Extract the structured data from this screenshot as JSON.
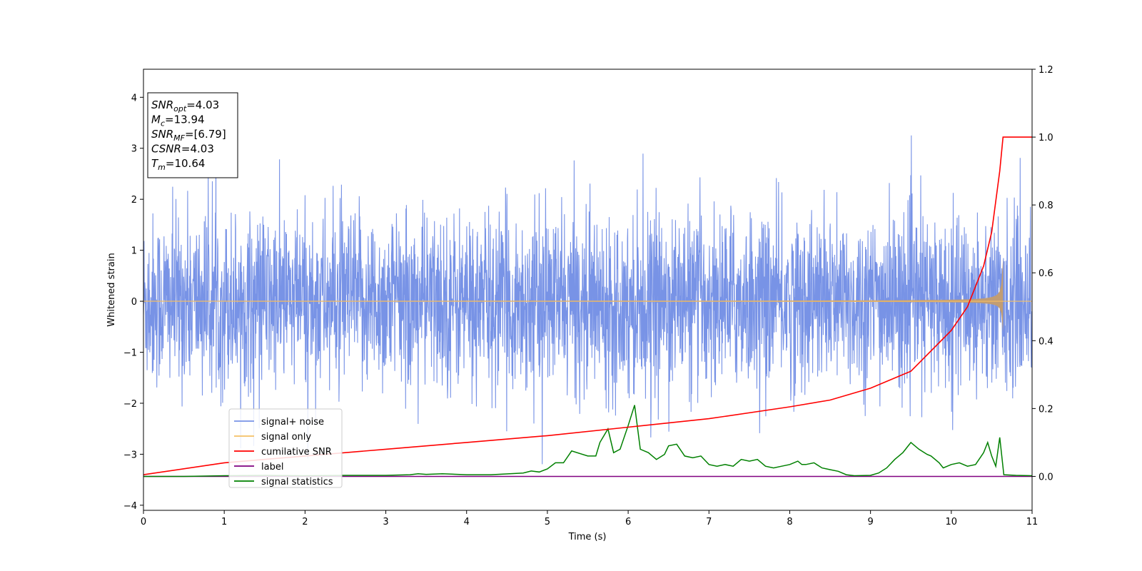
{
  "chart_data": {
    "type": "line",
    "xlabel": "Time (s)",
    "ylabel": "Whitened strain",
    "xlim": [
      0,
      11
    ],
    "ylim": [
      -4.1,
      4.55
    ],
    "y2lim": [
      -0.1,
      1.2
    ],
    "x_ticks": [
      "0",
      "1",
      "2",
      "3",
      "4",
      "5",
      "6",
      "7",
      "8",
      "9",
      "10",
      "11"
    ],
    "y_ticks": [
      "−4",
      "−3",
      "−2",
      "−1",
      "0",
      "1",
      "2",
      "3",
      "4"
    ],
    "y2_ticks": [
      "0.0",
      "0.2",
      "0.4",
      "0.6",
      "0.8",
      "1.0",
      "1.2"
    ],
    "legend_position": "lower-left",
    "info_box": {
      "lines": [
        {
          "name": "SNR",
          "sub": "opt",
          "value": "=4.03"
        },
        {
          "name": "M",
          "sub": "c",
          "value": "=13.94"
        },
        {
          "name": "SNR",
          "sub": "MF",
          "value": "=[6.79]"
        },
        {
          "name": "CSNR",
          "sub": "",
          "value": "=4.03"
        },
        {
          "name": "T",
          "sub": "m",
          "value": "=10.64"
        }
      ]
    },
    "series": [
      {
        "name": "signal+ noise",
        "color": "#7893e6",
        "axis": "left",
        "description_values": {
          "noise_std": 0.85,
          "max": 4.15,
          "min": -3.7
        }
      },
      {
        "name": "signal only",
        "color": "#f5c065",
        "fill_color": "#c19d74",
        "axis": "left",
        "chirp_end_time": 10.64,
        "peak_amplitude": 0.83
      },
      {
        "name": "cumilative SNR",
        "color": "#ff0000",
        "axis": "right",
        "x": [
          0,
          1,
          2,
          3,
          4,
          5,
          6,
          7,
          8,
          8.5,
          9,
          9.5,
          10,
          10.2,
          10.4,
          10.5,
          10.6,
          10.64,
          11
        ],
        "y": [
          0.005,
          0.04,
          0.06,
          0.08,
          0.1,
          0.12,
          0.145,
          0.17,
          0.205,
          0.225,
          0.26,
          0.31,
          0.43,
          0.5,
          0.62,
          0.72,
          0.9,
          1.0,
          1.0
        ]
      },
      {
        "name": "label",
        "color": "#800080",
        "axis": "right",
        "x": [
          0,
          11
        ],
        "y": [
          0,
          0
        ]
      },
      {
        "name": "signal statistics",
        "color": "#008000",
        "axis": "right",
        "x": [
          0,
          0.5,
          1,
          1.5,
          2,
          2.5,
          3,
          3.3,
          3.4,
          3.5,
          3.7,
          4,
          4.3,
          4.7,
          4.8,
          4.9,
          5.0,
          5.1,
          5.2,
          5.3,
          5.5,
          5.6,
          5.65,
          5.75,
          5.82,
          5.9,
          6.0,
          6.08,
          6.15,
          6.25,
          6.35,
          6.45,
          6.5,
          6.6,
          6.7,
          6.8,
          6.9,
          7.0,
          7.1,
          7.2,
          7.3,
          7.4,
          7.5,
          7.6,
          7.7,
          7.8,
          7.9,
          8.0,
          8.1,
          8.15,
          8.2,
          8.3,
          8.4,
          8.5,
          8.6,
          8.7,
          8.8,
          9.0,
          9.1,
          9.2,
          9.3,
          9.4,
          9.5,
          9.6,
          9.7,
          9.75,
          9.85,
          9.9,
          10.0,
          10.1,
          10.2,
          10.3,
          10.4,
          10.45,
          10.5,
          10.55,
          10.6,
          10.65,
          10.8,
          11
        ],
        "y": [
          0.0,
          0.0,
          0.002,
          0.003,
          0.002,
          0.003,
          0.003,
          0.005,
          0.008,
          0.006,
          0.008,
          0.005,
          0.005,
          0.01,
          0.016,
          0.013,
          0.022,
          0.04,
          0.04,
          0.075,
          0.06,
          0.06,
          0.1,
          0.14,
          0.07,
          0.08,
          0.15,
          0.21,
          0.08,
          0.07,
          0.05,
          0.065,
          0.09,
          0.095,
          0.06,
          0.055,
          0.06,
          0.035,
          0.03,
          0.035,
          0.03,
          0.05,
          0.045,
          0.05,
          0.03,
          0.025,
          0.03,
          0.035,
          0.045,
          0.035,
          0.035,
          0.04,
          0.025,
          0.02,
          0.015,
          0.005,
          0.002,
          0.003,
          0.01,
          0.025,
          0.05,
          0.07,
          0.1,
          0.08,
          0.065,
          0.06,
          0.04,
          0.025,
          0.035,
          0.04,
          0.03,
          0.035,
          0.07,
          0.1,
          0.06,
          0.03,
          0.115,
          0.005,
          0.003,
          0.002
        ]
      }
    ]
  }
}
